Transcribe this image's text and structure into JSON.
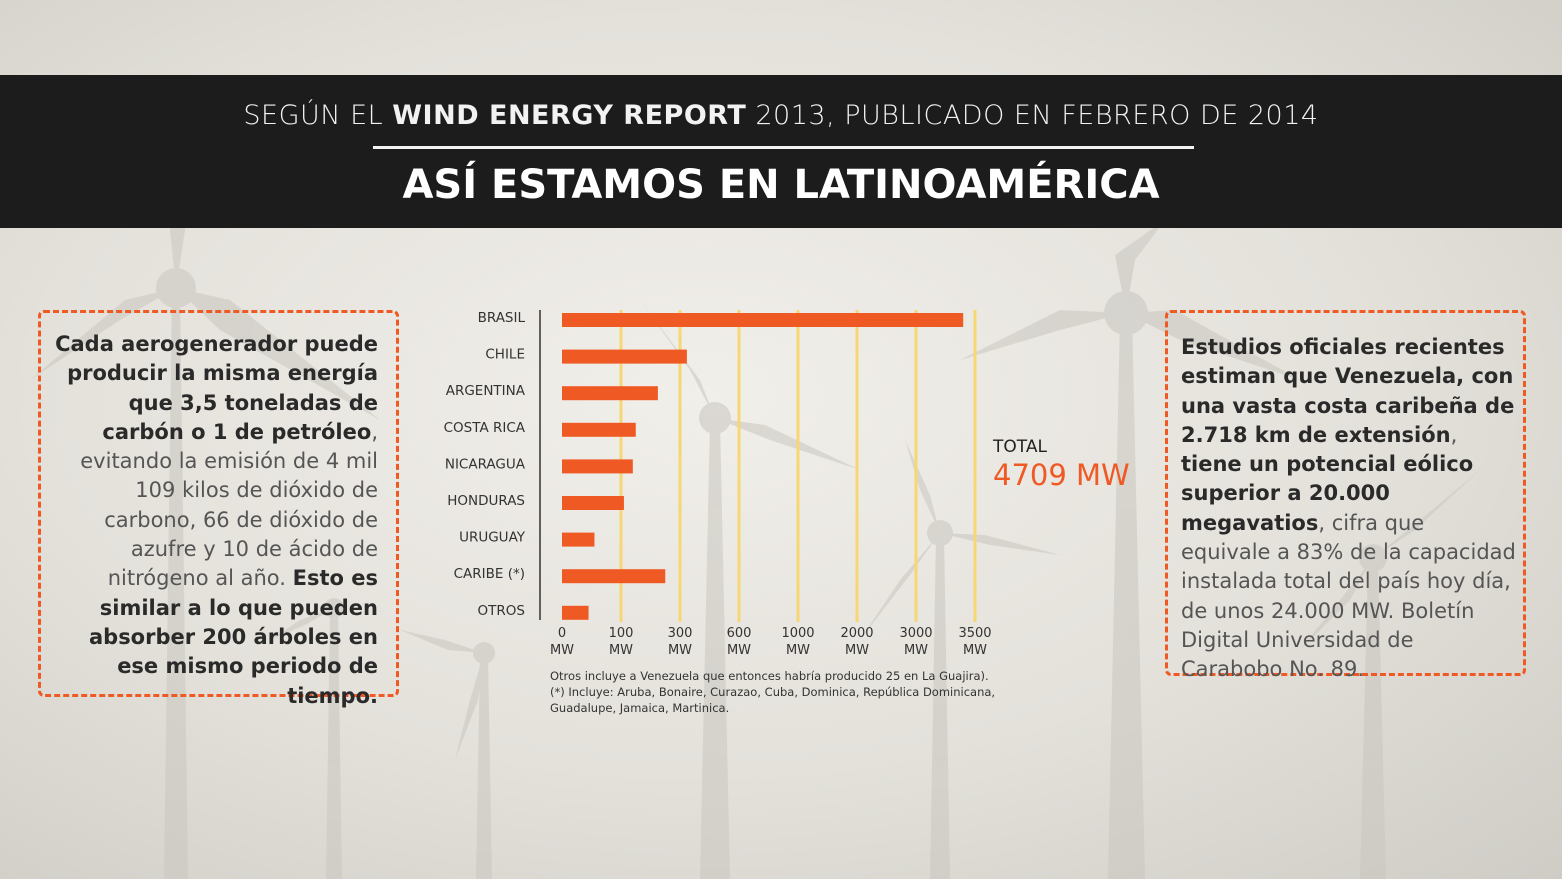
{
  "header": {
    "pre": "SEGÚN EL ",
    "bold": "WIND ENERGY REPORT",
    "post": " 2013, PUBLICADO EN FEBRERO DE 2014",
    "title": "ASÍ ESTAMOS EN LATINOAMÉRICA"
  },
  "left_text": {
    "p1_bold": "Cada aerogenerador puede producir la misma energía que 3,5 toneladas de carbón o 1 de petróleo",
    "p1_rest": ", evitando la emisión de 4 mil 109 kilos de dióxido de carbono, 66 de dióxido de azufre y 10 de ácido de nitrógeno al año. ",
    "p2_bold": "Esto es similar a lo que pueden absorber 200 árboles en ese mismo periodo de tiempo."
  },
  "right_text": {
    "p1_bold": "Estudios oficiales recientes estiman que Venezuela, con una vasta costa caribeña de 2.718 km de extensión",
    "sep": ", ",
    "p2_bold": "tiene un potencial eólico superior a 20.000 megavatios",
    "p2_rest": ", cifra que equivale a 83% de la capacidad instalada total del país hoy día, de unos 24.000 MW. Boletín Digital Universidad de Carabobo No. 89."
  },
  "total": {
    "label": "TOTAL",
    "value": "4709 MW"
  },
  "notes": [
    "Otros incluye a Venezuela que entonces habría producido 25 en La Guajira).",
    "(*) Incluye: Aruba, Bonaire, Curazao, Cuba, Dominica, República Dominicana,",
    "Guadalupe, Jamaica, Martinica."
  ],
  "colors": {
    "bar": "#ef5a24",
    "gridline": "#f7d774",
    "accent": "#ef5a24"
  },
  "chart_data": {
    "type": "bar",
    "orientation": "horizontal",
    "title": "",
    "xlabel": "",
    "ylabel": "",
    "unit": "MW",
    "x_ticks": [
      "0",
      "100",
      "300",
      "600",
      "1000",
      "2000",
      "3000",
      "3500"
    ],
    "x_tick_unit": "MW",
    "categories": [
      "BRASIL",
      "CHILE",
      "ARGENTINA",
      "COSTA RICA",
      "NICARAGUA",
      "HONDURAS",
      "URUGUAY",
      "CARIBE (*)",
      "OTROS"
    ],
    "values": [
      3400,
      335,
      225,
      150,
      140,
      110,
      55,
      250,
      45
    ]
  }
}
